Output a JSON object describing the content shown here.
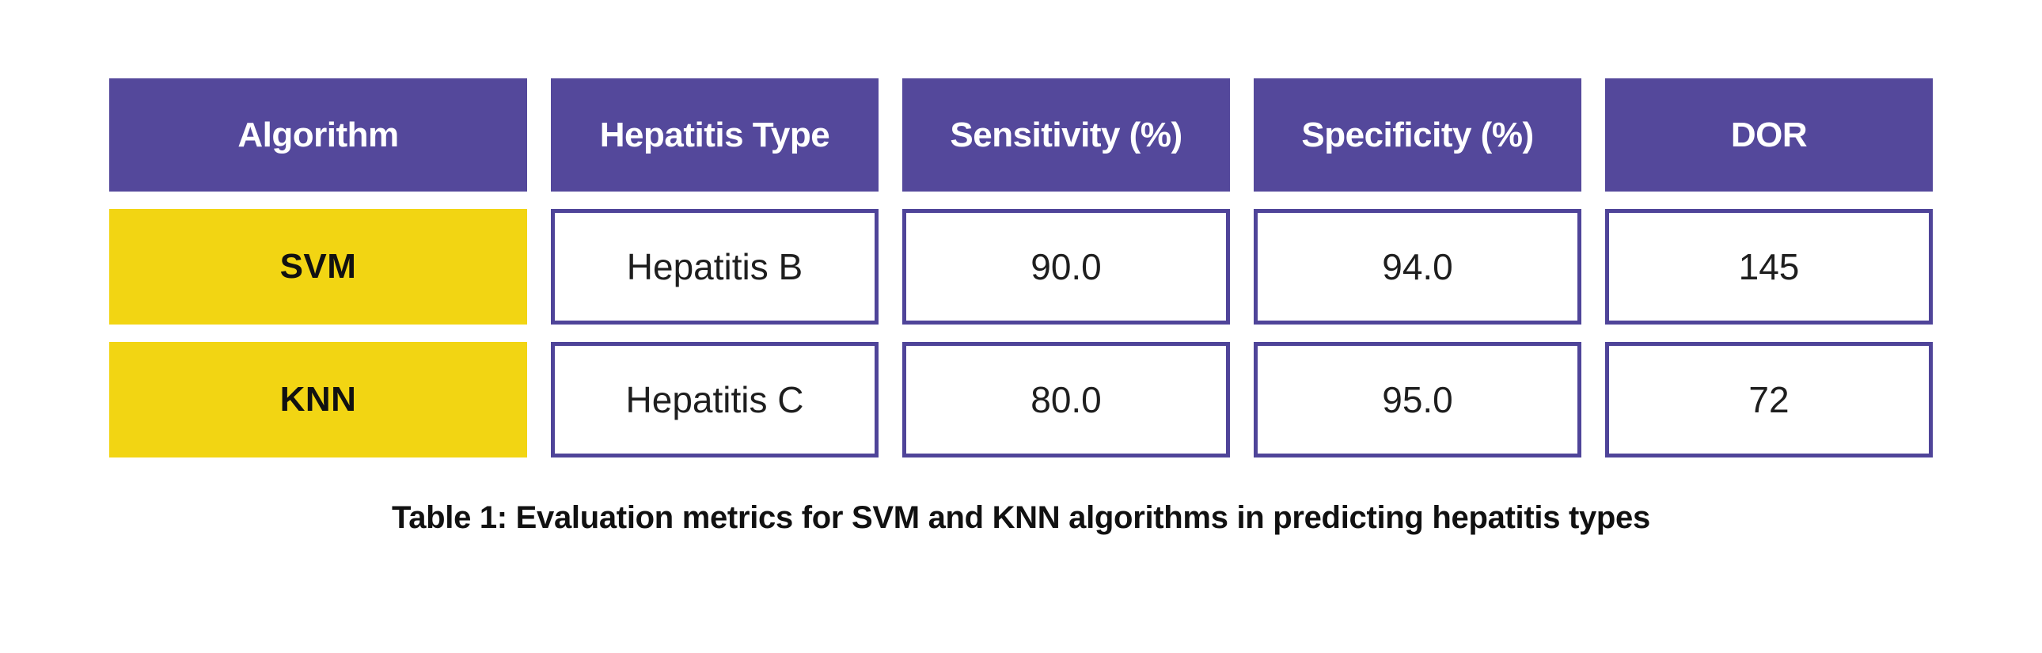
{
  "table": {
    "headers": [
      "Algorithm",
      "Hepatitis Type",
      "Sensitivity (%)",
      "Specificity (%)",
      "DOR"
    ],
    "rows": [
      {
        "cells": [
          "SVM",
          "Hepatitis B",
          "90.0",
          "94.0",
          "145"
        ]
      },
      {
        "cells": [
          "KNN",
          "Hepatitis C",
          "80.0",
          "95.0",
          "72"
        ]
      }
    ],
    "caption": "Table 1: Evaluation metrics for SVM and KNN algorithms in predicting hepatitis types"
  },
  "colors": {
    "header_bg": "#54489B",
    "header_text": "#FFFFFF",
    "algorithm_cell_bg": "#F2D513",
    "value_cell_border": "#4F4499",
    "value_cell_text": "#1E1E1E",
    "caption_text": "#111111",
    "page_bg": "#FFFFFF"
  },
  "chart_data": {
    "type": "table",
    "title": "Table 1: Evaluation metrics for SVM and KNN algorithms in predicting hepatitis types",
    "columns": [
      "Algorithm",
      "Hepatitis Type",
      "Sensitivity (%)",
      "Specificity (%)",
      "DOR"
    ],
    "rows": [
      [
        "SVM",
        "Hepatitis B",
        90.0,
        94.0,
        145
      ],
      [
        "KNN",
        "Hepatitis C",
        80.0,
        95.0,
        72
      ]
    ],
    "layout": "styled grid table, purple header row, yellow first-column cells, white bordered value cells, bold centered caption below"
  }
}
